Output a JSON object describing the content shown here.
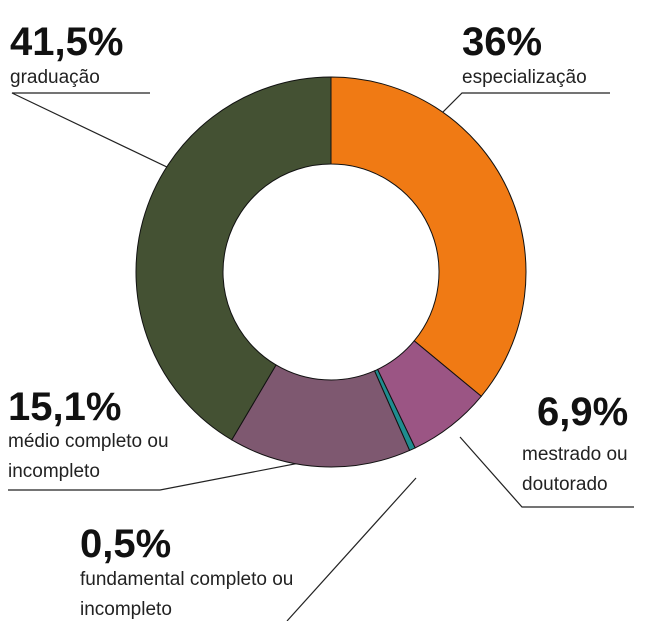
{
  "chart_data": {
    "type": "donut",
    "categories": [
      "especialização",
      "mestrado ou doutorado",
      "fundamental completo ou incompleto",
      "médio completo ou incompleto",
      "graduação"
    ],
    "values": [
      36,
      6.9,
      0.5,
      15.1,
      41.5
    ],
    "value_labels": [
      "36%",
      "6,9%",
      "0,5%",
      "15,1%",
      "41,5%"
    ],
    "colors": [
      "#f07a14",
      "#9b5584",
      "#1f8c8f",
      "#7e5870",
      "#445133"
    ]
  }
}
